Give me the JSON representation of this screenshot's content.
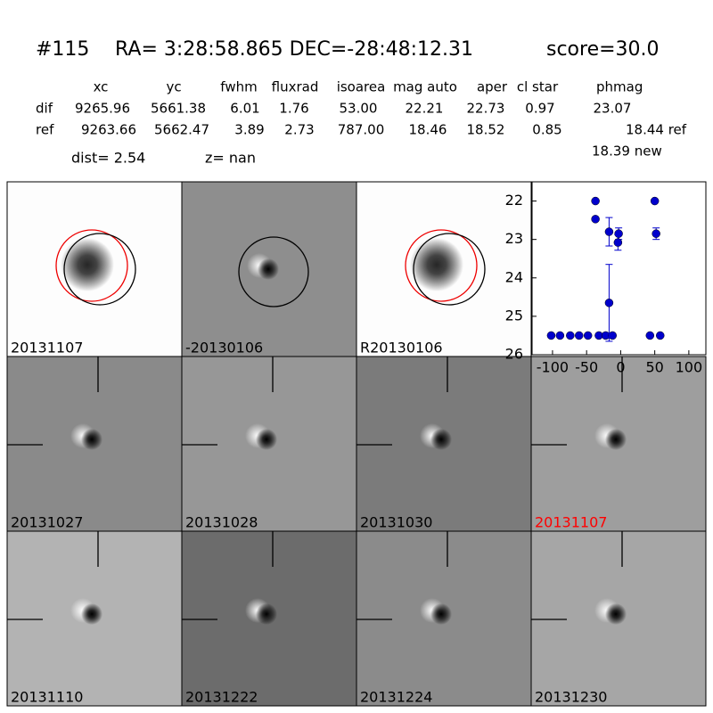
{
  "header": {
    "id": "#115",
    "coords": "RA= 3:28:58.865 DEC=-28:48:12.31",
    "score": "score=30.0"
  },
  "table": {
    "columns": [
      "xc",
      "yc",
      "fwhm",
      "fluxrad",
      "isoarea",
      "mag auto",
      "aper",
      "cl star",
      "phmag"
    ],
    "rows": [
      [
        "dif",
        "9265.96",
        "5661.38",
        "6.01",
        "1.76",
        "53.00",
        "22.21",
        "22.73",
        "0.97",
        "23.07"
      ],
      [
        "ref",
        "9263.66",
        "5662.47",
        "3.89",
        "2.73",
        "787.00",
        "18.46",
        "18.52",
        "0.85",
        "18.44 ref"
      ]
    ],
    "extra": "18.39 new",
    "dist": "dist=  2.54",
    "z": "z=   nan"
  },
  "stamps": [
    {
      "label": "20131107",
      "background": "#fdfdfd"
    },
    {
      "label": "-20130106",
      "background": "#8e8e8e"
    },
    {
      "label": "R20130106",
      "background": "#fdfdfd"
    },
    {
      "label": "20131027",
      "background": "#8a8a8a"
    },
    {
      "label": "20131028",
      "background": "#979797"
    },
    {
      "label": "20131030",
      "background": "#7b7b7b"
    },
    {
      "label": "20131107",
      "background": "#9e9e9e",
      "color": "#ff0000"
    },
    {
      "label": "20131110",
      "background": "#b3b3b3"
    },
    {
      "label": "20131222",
      "background": "#6c6c6c"
    },
    {
      "label": "20131224",
      "background": "#8b8b8b"
    },
    {
      "label": "20131230",
      "background": "#a6a6a6"
    }
  ],
  "chart_data": {
    "type": "scatter",
    "color": "#0000cc",
    "x": [
      -102,
      -89,
      -74,
      -61,
      -48,
      -32,
      -22,
      -12,
      43,
      58,
      -37,
      -37,
      -17,
      -17,
      -3,
      -4,
      50,
      52
    ],
    "values": [
      25.5,
      25.5,
      25.5,
      25.5,
      25.5,
      25.5,
      25.5,
      25.5,
      25.5,
      25.5,
      22.0,
      22.47,
      22.8,
      24.65,
      22.85,
      23.08,
      22.0,
      22.85
    ],
    "errors": [
      null,
      null,
      null,
      null,
      null,
      null,
      null,
      null,
      null,
      null,
      null,
      null,
      0.37,
      1.0,
      0.15,
      0.2,
      null,
      0.15
    ],
    "xlim": [
      -130,
      125
    ],
    "ylim": [
      26,
      21.5
    ],
    "xticks": [
      -100,
      -50,
      0,
      50,
      100
    ],
    "yticks": [
      22,
      23,
      24,
      25,
      26
    ]
  }
}
